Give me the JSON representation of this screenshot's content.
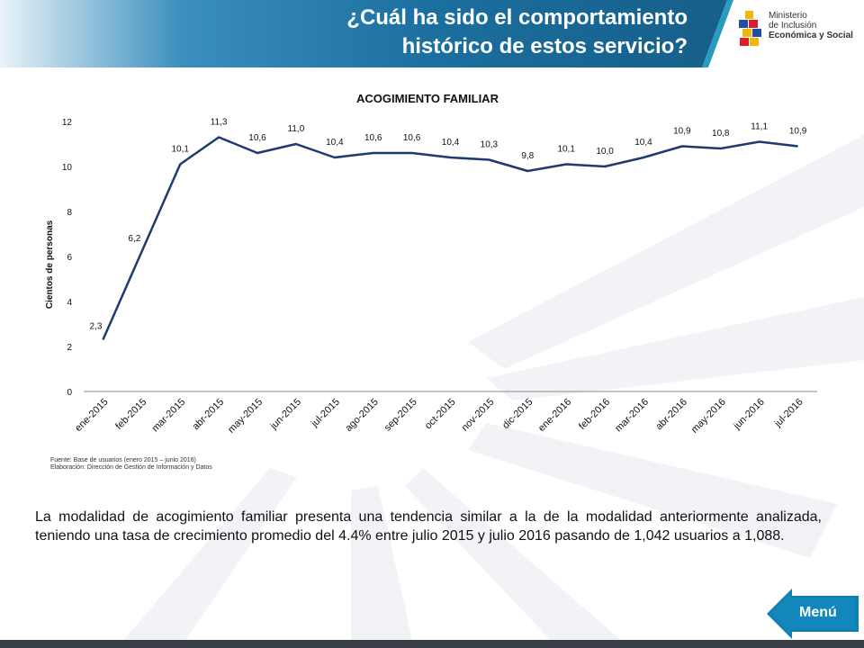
{
  "header": {
    "title_line1": "¿Cuál ha sido el comportamiento",
    "title_line2": "histórico de estos servicio?"
  },
  "logo": {
    "line1": "Ministerio",
    "line2": "de Inclusión",
    "line3": "Económica y Social"
  },
  "chart_data": {
    "type": "line",
    "title": "ACOGIMIENTO FAMILIAR",
    "xlabel": "",
    "ylabel": "Cientos de personas",
    "ylim": [
      0,
      12
    ],
    "yticks": [
      "0",
      "2",
      "4",
      "6",
      "8",
      "10",
      "12"
    ],
    "categories": [
      "ene-2015",
      "feb-2015",
      "mar-2015",
      "abr-2015",
      "may-2015",
      "jun-2015",
      "jul-2015",
      "ago-2015",
      "sep-2015",
      "oct-2015",
      "nov-2015",
      "dic-2015",
      "ene-2016",
      "feb-2016",
      "mar-2016",
      "abr-2016",
      "may-2016",
      "jun-2016",
      "jul-2016"
    ],
    "values": [
      2.3,
      6.2,
      10.1,
      11.3,
      10.6,
      11.0,
      10.4,
      10.6,
      10.6,
      10.4,
      10.3,
      9.8,
      10.1,
      10.0,
      10.4,
      10.9,
      10.8,
      11.1,
      10.9
    ],
    "data_labels": [
      "2,3",
      "6,2",
      "10,1",
      "11,3",
      "10,6",
      "11,0",
      "10,4",
      "10,6",
      "10,6",
      "10,4",
      "10,3",
      "9,8",
      "10,1",
      "10,0",
      "10,4",
      "10,9",
      "10,8",
      "11,1",
      "10,9"
    ],
    "line_color": "#1f3a6e",
    "grid": false,
    "legend": "none"
  },
  "source": {
    "line1": "Fuente: Base de usuarios (enero 2015 – junio 2016)",
    "line2": "Elaboración: Dirección de Gestión de Información y Datos"
  },
  "body_text": "La modalidad de acogimiento familiar presenta una  tendencia similar a la de la modalidad anteriormente analizada,  teniendo una tasa de crecimiento promedio del 4.4% entre julio 2015 y julio 2016 pasando de 1,042 usuarios a 1,088.",
  "menu": {
    "label": "Menú"
  },
  "colors": {
    "banner": "#1b6e9e",
    "accent": "#2a9bc0",
    "menu": "#0f7fb0"
  }
}
